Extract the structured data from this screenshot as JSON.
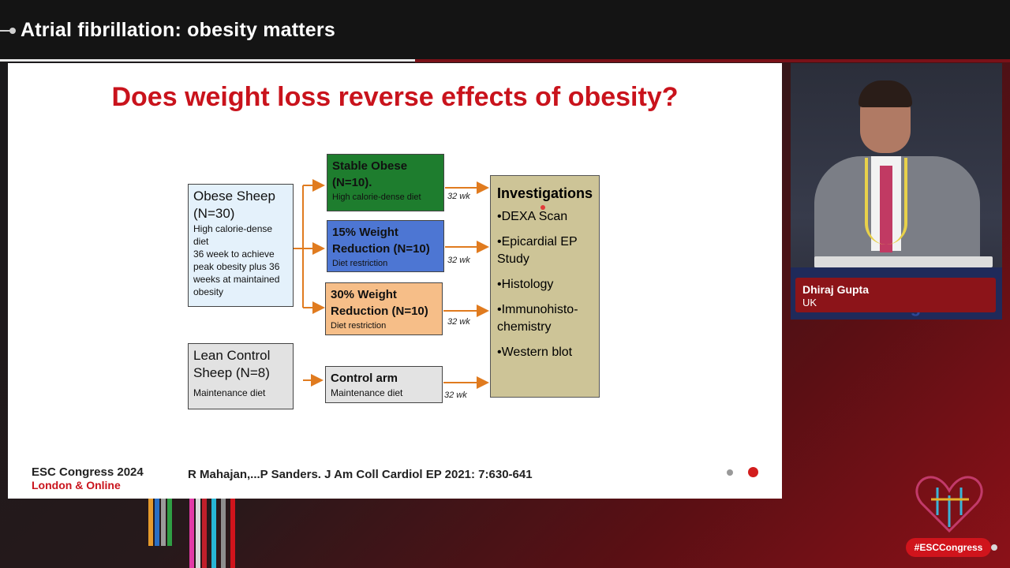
{
  "header": {
    "title": "Atrial fibrillation: obesity matters"
  },
  "slide": {
    "title": "Does weight loss reverse effects of obesity?",
    "obese_sheep": {
      "title": "Obese Sheep (N=30)",
      "detail": [
        "High calorie-dense diet",
        "36 week to achieve peak obesity plus 36 weeks at maintained obesity"
      ]
    },
    "lean_sheep": {
      "title": "Lean Control Sheep (N=8)",
      "detail": "Maintenance diet"
    },
    "arms": [
      {
        "title": "Stable Obese (N=10).",
        "detail": "High calorie-dense diet",
        "duration": "32 wk",
        "color": "#1e7d2e"
      },
      {
        "title": "15% Weight Reduction (N=10)",
        "detail": "Diet restriction",
        "duration": "32 wk",
        "color": "#4d76d3"
      },
      {
        "title": "30% Weight Reduction (N=10)",
        "detail": "Diet restriction",
        "duration": "32 wk",
        "color": "#f6be88"
      },
      {
        "title": "Control arm",
        "detail": "Maintenance diet",
        "duration": "32 wk",
        "color": "#dcdcdc"
      }
    ],
    "investigations": {
      "title": "Investigations",
      "items": [
        "•DEXA Scan",
        "•Epicardial EP Study",
        "•Histology",
        "•Immunohisto-chemistry",
        "•Western blot"
      ]
    },
    "footer": {
      "congress": "ESC Congress 2024",
      "city": "London & Online",
      "citation": "R Mahajan,...P Sanders. J Am Coll Cardiol EP 2021: 7:630-641"
    }
  },
  "speaker": {
    "name": "Dhiraj Gupta",
    "country": "UK",
    "backdrop_text": "ESC Congress"
  },
  "hashtag": "#ESCCongress"
}
